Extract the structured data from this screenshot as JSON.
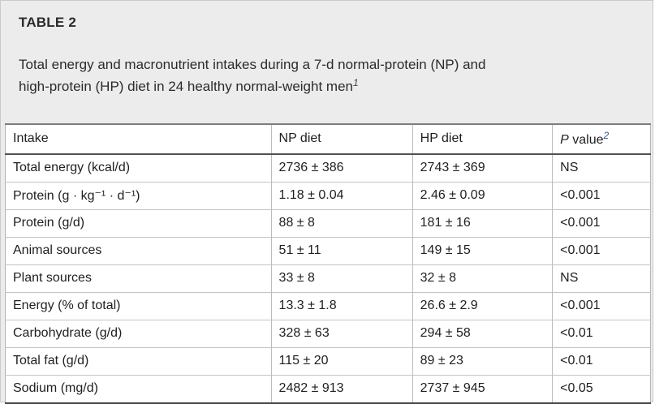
{
  "paper_table": {
    "label": "TABLE 2",
    "caption_line1": "Total energy and macronutrient intakes during a 7-d normal-protein (NP) and",
    "caption_line2": "high-protein (HP) diet in 24 healthy normal-weight men",
    "caption_footnote_marker": "1"
  },
  "colors": {
    "card_background": "#ececec",
    "table_background": "#ffffff",
    "footnote_link_blue": "#3a55a4",
    "text": "#1f1f1f"
  },
  "table": {
    "headers": {
      "intake": "Intake",
      "np": "NP diet",
      "hp": "HP diet",
      "p_prefix": "P",
      "p_label": " value",
      "p_footnote_marker": "2"
    },
    "rows": [
      {
        "label": "Total energy (kcal/d)",
        "np": "2736 ± 386",
        "hp": "2743 ± 369",
        "p": "NS"
      },
      {
        "label": "Protein (g · kg⁻¹ · d⁻¹)",
        "np": "1.18 ± 0.04",
        "hp": "2.46 ± 0.09",
        "p": "<0.001"
      },
      {
        "label": "Protein (g/d)",
        "np": "88 ± 8",
        "hp": "181 ± 16",
        "p": "<0.001"
      },
      {
        "label": "Animal sources",
        "np": "51 ± 11",
        "hp": "149 ± 15",
        "p": "<0.001",
        "indent": true
      },
      {
        "label": "Plant sources",
        "np": "33 ± 8",
        "hp": "32 ± 8",
        "p": "NS",
        "indent": true
      },
      {
        "label": "Energy (% of total)",
        "np": "13.3 ± 1.8",
        "hp": "26.6 ± 2.9",
        "p": "<0.001"
      },
      {
        "label": "Carbohydrate (g/d)",
        "np": "328 ± 63",
        "hp": "294 ± 58",
        "p": "<0.01"
      },
      {
        "label": "Total fat (g/d)",
        "np": "115 ± 20",
        "hp": "89 ± 23",
        "p": "<0.01"
      },
      {
        "label": "Sodium (mg/d)",
        "np": "2482 ± 913",
        "hp": "2737 ± 945",
        "p": "<0.05"
      }
    ]
  }
}
